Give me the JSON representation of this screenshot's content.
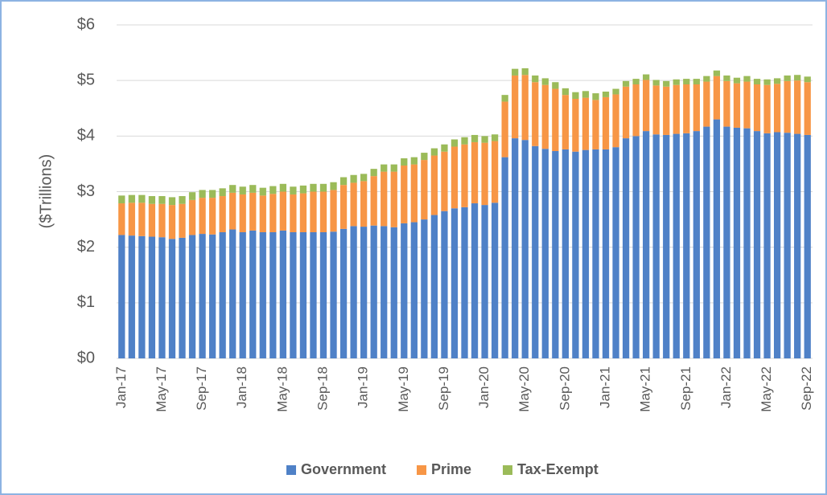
{
  "chart_data": {
    "type": "stacked_bar",
    "y_label": "($Trillions)",
    "categories": [
      "Jan-17",
      null,
      null,
      null,
      "May-17",
      null,
      null,
      null,
      "Sep-17",
      null,
      null,
      null,
      "Jan-18",
      null,
      null,
      null,
      "May-18",
      null,
      null,
      null,
      "Sep-18",
      null,
      null,
      null,
      "Jan-19",
      null,
      null,
      null,
      "May-19",
      null,
      null,
      null,
      "Sep-19",
      null,
      null,
      null,
      "Jan-20",
      null,
      null,
      null,
      "May-20",
      null,
      null,
      null,
      "Sep-20",
      null,
      null,
      null,
      "Jan-21",
      null,
      null,
      null,
      "May-21",
      null,
      null,
      null,
      "Sep-21",
      null,
      null,
      null,
      "Jan-22",
      null,
      null,
      null,
      "May-22",
      null,
      null,
      null,
      "Sep-22"
    ],
    "series": [
      {
        "name": "Government",
        "color": "#4f81c7",
        "values": [
          2.22,
          2.21,
          2.2,
          2.19,
          2.18,
          2.15,
          2.17,
          2.22,
          2.24,
          2.23,
          2.27,
          2.32,
          2.27,
          2.3,
          2.27,
          2.27,
          2.3,
          2.27,
          2.27,
          2.27,
          2.27,
          2.28,
          2.33,
          2.38,
          2.37,
          2.39,
          2.38,
          2.36,
          2.43,
          2.45,
          2.5,
          2.58,
          2.65,
          2.7,
          2.72,
          2.79,
          2.76,
          2.8,
          3.62,
          3.96,
          3.93,
          3.82,
          3.77,
          3.73,
          3.76,
          3.72,
          3.75,
          3.76,
          3.76,
          3.8,
          3.96,
          4.0,
          4.09,
          4.03,
          4.02,
          4.04,
          4.05,
          4.09,
          4.17,
          4.3,
          4.17,
          4.15,
          4.14,
          4.09,
          4.05,
          4.07,
          4.06,
          4.04,
          4.02
        ]
      },
      {
        "name": "Prime",
        "color": "#f79646",
        "values": [
          0.57,
          0.59,
          0.6,
          0.59,
          0.6,
          0.61,
          0.61,
          0.63,
          0.65,
          0.66,
          0.65,
          0.66,
          0.68,
          0.68,
          0.66,
          0.69,
          0.7,
          0.68,
          0.7,
          0.73,
          0.73,
          0.75,
          0.79,
          0.78,
          0.82,
          0.89,
          0.98,
          1.0,
          1.04,
          1.04,
          1.07,
          1.07,
          1.07,
          1.11,
          1.13,
          1.1,
          1.12,
          1.11,
          1.0,
          1.13,
          1.17,
          1.15,
          1.15,
          1.12,
          0.98,
          0.95,
          0.94,
          0.89,
          0.94,
          0.95,
          0.93,
          0.93,
          0.92,
          0.88,
          0.87,
          0.88,
          0.88,
          0.84,
          0.81,
          0.78,
          0.82,
          0.8,
          0.84,
          0.84,
          0.87,
          0.87,
          0.93,
          0.96,
          0.95
        ]
      },
      {
        "name": "Tax-Exempt",
        "color": "#9bbb59",
        "values": [
          0.14,
          0.14,
          0.14,
          0.14,
          0.14,
          0.14,
          0.14,
          0.14,
          0.14,
          0.14,
          0.14,
          0.14,
          0.14,
          0.14,
          0.14,
          0.14,
          0.14,
          0.14,
          0.14,
          0.14,
          0.14,
          0.14,
          0.14,
          0.14,
          0.13,
          0.13,
          0.13,
          0.13,
          0.13,
          0.13,
          0.13,
          0.13,
          0.13,
          0.13,
          0.13,
          0.13,
          0.12,
          0.12,
          0.12,
          0.12,
          0.12,
          0.12,
          0.12,
          0.12,
          0.12,
          0.12,
          0.12,
          0.12,
          0.1,
          0.1,
          0.1,
          0.1,
          0.1,
          0.1,
          0.1,
          0.1,
          0.1,
          0.1,
          0.1,
          0.1,
          0.1,
          0.1,
          0.1,
          0.1,
          0.1,
          0.1,
          0.1,
          0.1,
          0.1
        ]
      }
    ],
    "ylim": [
      0,
      6
    ],
    "yticks": [
      {
        "value": 0,
        "label": "$0"
      },
      {
        "value": 1,
        "label": "$1"
      },
      {
        "value": 2,
        "label": "$2"
      },
      {
        "value": 3,
        "label": "$3"
      },
      {
        "value": 4,
        "label": "$4"
      },
      {
        "value": 5,
        "label": "$5"
      },
      {
        "value": 6,
        "label": "$6"
      }
    ],
    "grid": true,
    "legend": "bottom"
  }
}
